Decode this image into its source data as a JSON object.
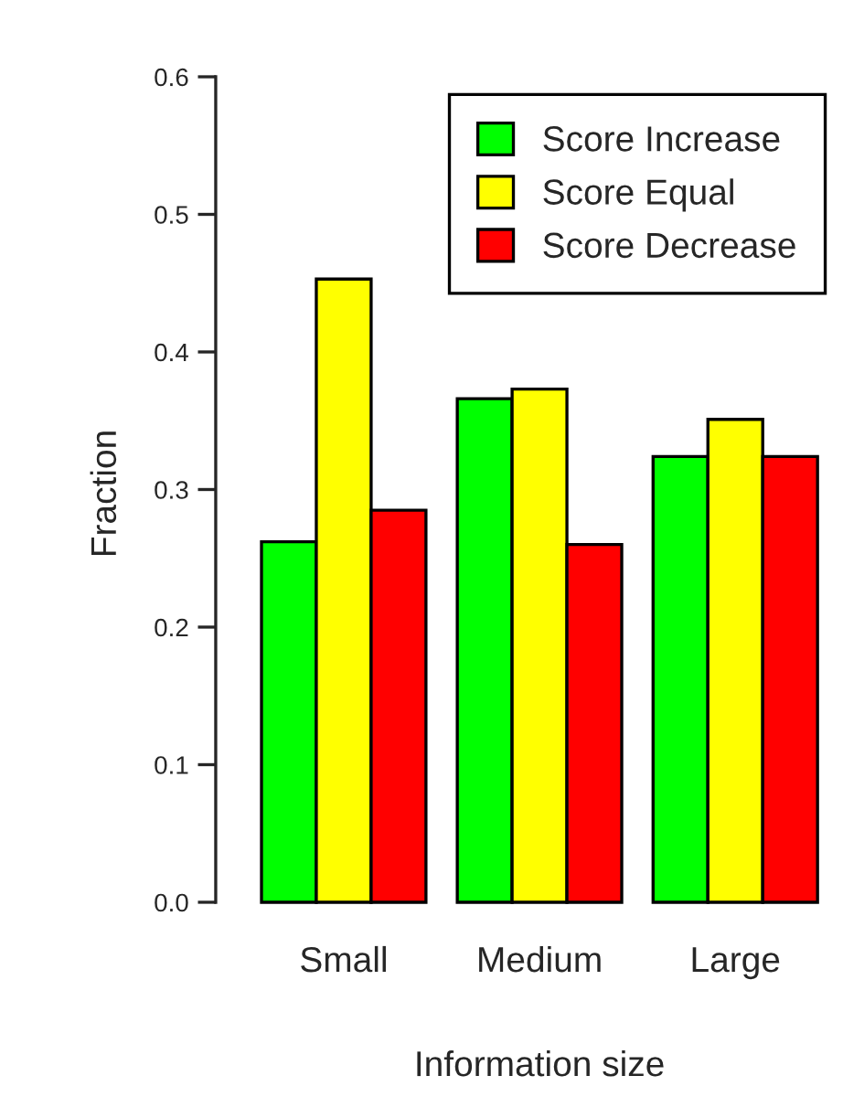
{
  "chart_data": {
    "type": "bar",
    "xlabel": "Information size",
    "ylabel": "Fraction",
    "categories": [
      "Small",
      "Medium",
      "Large"
    ],
    "series": [
      {
        "name": "Score Increase",
        "color": "#00ff00",
        "values": [
          0.262,
          0.366,
          0.324
        ]
      },
      {
        "name": "Score Equal",
        "color": "#ffff00",
        "values": [
          0.453,
          0.373,
          0.351
        ]
      },
      {
        "name": "Score Decrease",
        "color": "#ff0000",
        "values": [
          0.285,
          0.26,
          0.324
        ]
      }
    ],
    "ylim": [
      0,
      0.6
    ],
    "yticks": [
      {
        "value": 0,
        "label": "0.0"
      },
      0.1,
      0.2,
      0.3,
      0.4,
      0.5,
      0.6
    ],
    "legend": "top right",
    "grid": false
  }
}
